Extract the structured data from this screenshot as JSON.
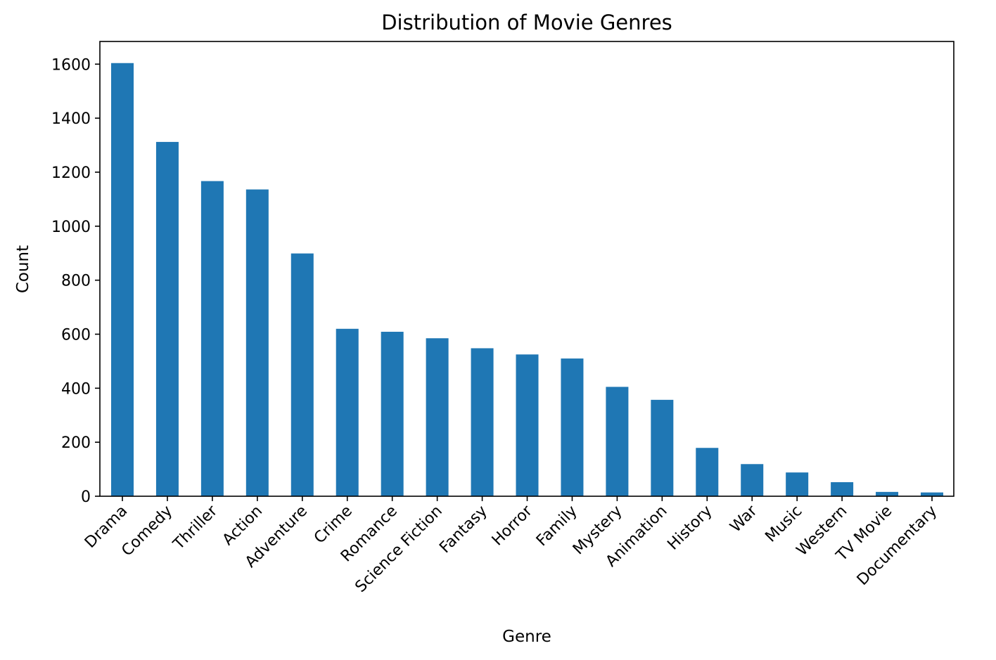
{
  "chart_data": {
    "type": "bar",
    "title": "Distribution of Movie Genres",
    "xlabel": "Genre",
    "ylabel": "Count",
    "ylim": [
      0,
      1684
    ],
    "yticks": [
      0,
      200,
      400,
      600,
      800,
      1000,
      1200,
      1400,
      1600
    ],
    "categories": [
      "Drama",
      "Comedy",
      "Thriller",
      "Action",
      "Adventure",
      "Crime",
      "Romance",
      "Science Fiction",
      "Fantasy",
      "Horror",
      "Family",
      "Mystery",
      "Animation",
      "History",
      "War",
      "Music",
      "Western",
      "TV Movie",
      "Documentary"
    ],
    "values": [
      1604,
      1312,
      1167,
      1136,
      899,
      620,
      609,
      585,
      548,
      525,
      510,
      405,
      357,
      179,
      119,
      88,
      52,
      16,
      14
    ],
    "bar_color": "#1f77b4",
    "grid": false,
    "legend": "none"
  }
}
